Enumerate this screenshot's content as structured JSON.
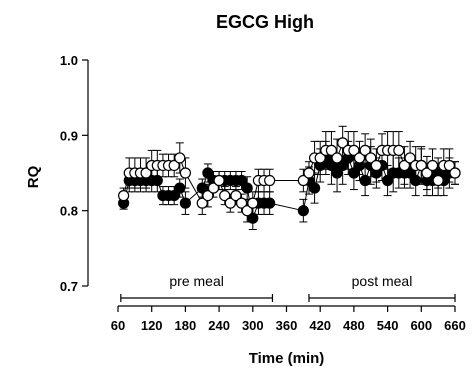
{
  "chart_data": {
    "type": "scatter",
    "title": "EGCG High",
    "xlabel": "Time (min)",
    "ylabel": "RQ",
    "xlim": [
      60,
      665
    ],
    "ylim": [
      0.7,
      1.0
    ],
    "x_ticks": [
      60,
      120,
      180,
      240,
      300,
      360,
      420,
      480,
      540,
      600,
      660
    ],
    "y_ticks": [
      0.7,
      0.8,
      0.9,
      1.0
    ],
    "y_tick_labels": [
      "0.7",
      "0.8",
      "0.9",
      "1.0"
    ],
    "grid": false,
    "series": [
      {
        "marker": "filled-circle",
        "color": "#000000",
        "x": [
          70,
          80,
          90,
          100,
          110,
          120,
          130,
          140,
          150,
          160,
          170,
          180,
          210,
          220,
          230,
          240,
          250,
          260,
          270,
          280,
          290,
          300,
          310,
          320,
          330,
          390,
          400,
          410,
          420,
          430,
          440,
          450,
          460,
          470,
          480,
          490,
          500,
          510,
          520,
          530,
          540,
          550,
          560,
          570,
          580,
          590,
          600,
          610,
          620,
          630,
          640,
          650,
          660
        ],
        "y": [
          0.81,
          0.84,
          0.84,
          0.84,
          0.84,
          0.84,
          0.84,
          0.82,
          0.82,
          0.82,
          0.83,
          0.81,
          0.83,
          0.85,
          0.84,
          0.84,
          0.84,
          0.84,
          0.84,
          0.84,
          0.83,
          0.79,
          0.81,
          0.81,
          0.81,
          0.8,
          0.84,
          0.83,
          0.86,
          0.87,
          0.86,
          0.85,
          0.86,
          0.87,
          0.85,
          0.86,
          0.84,
          0.86,
          0.85,
          0.86,
          0.84,
          0.85,
          0.85,
          0.85,
          0.85,
          0.84,
          0.86,
          0.84,
          0.84,
          0.85,
          0.84,
          0.85,
          0.85
        ],
        "err": [
          0.008,
          0.015,
          0.015,
          0.015,
          0.015,
          0.015,
          0.015,
          0.012,
          0.012,
          0.012,
          0.012,
          0.015,
          0.012,
          0.012,
          0.012,
          0.012,
          0.012,
          0.012,
          0.012,
          0.012,
          0.015,
          0.015,
          0.015,
          0.015,
          0.015,
          0.015,
          0.018,
          0.02,
          0.022,
          0.022,
          0.025,
          0.025,
          0.025,
          0.022,
          0.022,
          0.02,
          0.02,
          0.025,
          0.02,
          0.02,
          0.02,
          0.025,
          0.02,
          0.02,
          0.02,
          0.02,
          0.025,
          0.02,
          0.02,
          0.02,
          0.02,
          0.02,
          0.015
        ]
      },
      {
        "marker": "open-circle",
        "color": "#000000",
        "x": [
          70,
          80,
          90,
          100,
          110,
          120,
          130,
          140,
          150,
          160,
          170,
          180,
          210,
          220,
          230,
          240,
          250,
          260,
          270,
          280,
          290,
          300,
          310,
          320,
          330,
          390,
          400,
          410,
          420,
          430,
          440,
          450,
          460,
          470,
          480,
          490,
          500,
          510,
          520,
          530,
          540,
          550,
          560,
          570,
          580,
          590,
          600,
          610,
          620,
          630,
          640,
          650,
          660
        ],
        "y": [
          0.82,
          0.85,
          0.85,
          0.85,
          0.85,
          0.86,
          0.86,
          0.86,
          0.86,
          0.86,
          0.87,
          0.85,
          0.81,
          0.82,
          0.83,
          0.84,
          0.82,
          0.81,
          0.82,
          0.81,
          0.8,
          0.81,
          0.84,
          0.84,
          0.84,
          0.84,
          0.85,
          0.87,
          0.87,
          0.88,
          0.88,
          0.87,
          0.89,
          0.88,
          0.88,
          0.87,
          0.88,
          0.87,
          0.86,
          0.88,
          0.88,
          0.88,
          0.88,
          0.86,
          0.87,
          0.86,
          0.86,
          0.85,
          0.86,
          0.84,
          0.86,
          0.86,
          0.85
        ],
        "err": [
          0.01,
          0.02,
          0.02,
          0.02,
          0.02,
          0.02,
          0.02,
          0.015,
          0.015,
          0.015,
          0.02,
          0.02,
          0.015,
          0.015,
          0.012,
          0.012,
          0.012,
          0.012,
          0.012,
          0.012,
          0.015,
          0.015,
          0.015,
          0.015,
          0.015,
          0.015,
          0.015,
          0.022,
          0.022,
          0.025,
          0.025,
          0.025,
          0.022,
          0.025,
          0.025,
          0.022,
          0.022,
          0.025,
          0.022,
          0.022,
          0.025,
          0.025,
          0.025,
          0.025,
          0.022,
          0.025,
          0.022,
          0.022,
          0.022,
          0.02,
          0.022,
          0.022,
          0.015
        ]
      }
    ],
    "annotations": [
      {
        "text": "pre meal",
        "x_start": 65,
        "x_end": 335
      },
      {
        "text": "post meal",
        "x_start": 400,
        "x_end": 660
      }
    ]
  }
}
